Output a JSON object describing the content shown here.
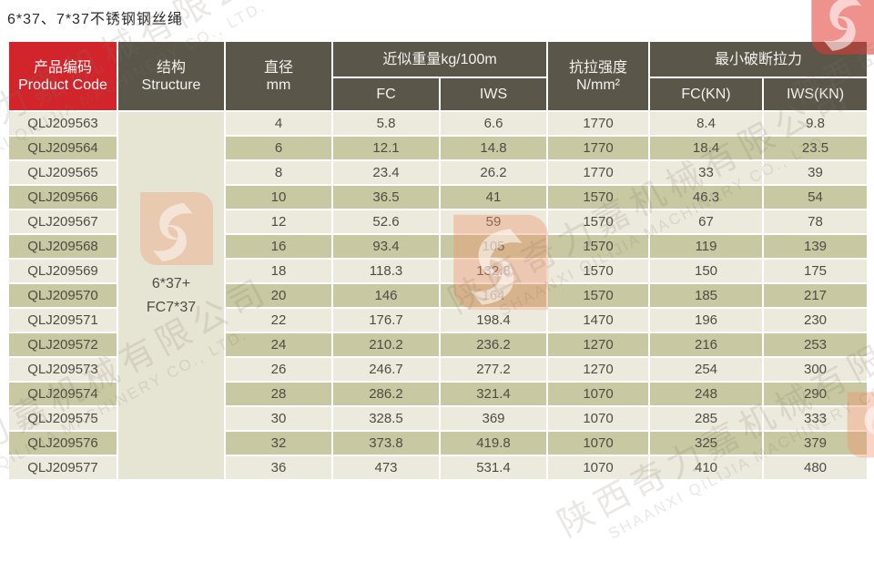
{
  "title": "6*37、7*37不锈钢钢丝绳",
  "colors": {
    "header_red": "#d2252b",
    "header_dark": "#5a574a",
    "row_light": "#eceadc",
    "row_dark": "#c8c8a2",
    "structure_bg": "#e6e4d2",
    "watermark_orange": "#ef9168"
  },
  "table": {
    "headers": {
      "product_code": "产品编码\nProduct Code",
      "structure": "结构\nStructure",
      "diameter": "直径\nmm",
      "weight_group": "近似重量kg/100m",
      "weight_fc": "FC",
      "weight_iws": "IWS",
      "tensile": "抗拉强度\nN/mm²",
      "breaking_group": "最小破断拉力",
      "breaking_fc": "FC(KN)",
      "breaking_iws": "IWS(KN)"
    },
    "structure_value": "6*37+\nFC7*37",
    "rows": [
      [
        "QLJ209563",
        "4",
        "5.8",
        "6.6",
        "1770",
        "8.4",
        "9.8"
      ],
      [
        "QLJ209564",
        "6",
        "12.1",
        "14.8",
        "1770",
        "18.4",
        "23.5"
      ],
      [
        "QLJ209565",
        "8",
        "23.4",
        "26.2",
        "1770",
        "33",
        "39"
      ],
      [
        "QLJ209566",
        "10",
        "36.5",
        "41",
        "1570",
        "46.3",
        "54"
      ],
      [
        "QLJ209567",
        "12",
        "52.6",
        "59",
        "1570",
        "67",
        "78"
      ],
      [
        "QLJ209568",
        "16",
        "93.4",
        "105",
        "1570",
        "119",
        "139"
      ],
      [
        "QLJ209569",
        "18",
        "118.3",
        "132.8",
        "1570",
        "150",
        "175"
      ],
      [
        "QLJ209570",
        "20",
        "146",
        "164",
        "1570",
        "185",
        "217"
      ],
      [
        "QLJ209571",
        "22",
        "176.7",
        "198.4",
        "1470",
        "196",
        "230"
      ],
      [
        "QLJ209572",
        "24",
        "210.2",
        "236.2",
        "1270",
        "216",
        "253"
      ],
      [
        "QLJ209573",
        "26",
        "246.7",
        "277.2",
        "1270",
        "254",
        "300"
      ],
      [
        "QLJ209574",
        "28",
        "286.2",
        "321.4",
        "1070",
        "248",
        "290"
      ],
      [
        "QLJ209575",
        "30",
        "328.5",
        "369",
        "1070",
        "285",
        "333"
      ],
      [
        "QLJ209576",
        "32",
        "373.8",
        "419.8",
        "1070",
        "325",
        "379"
      ],
      [
        "QLJ209577",
        "36",
        "473",
        "531.4",
        "1070",
        "410",
        "480"
      ]
    ]
  },
  "watermark": {
    "cn": "陕西奇力嘉机械有限公司",
    "en": "SHAANXI QILIJIA MACHINERY CO., LTD."
  }
}
